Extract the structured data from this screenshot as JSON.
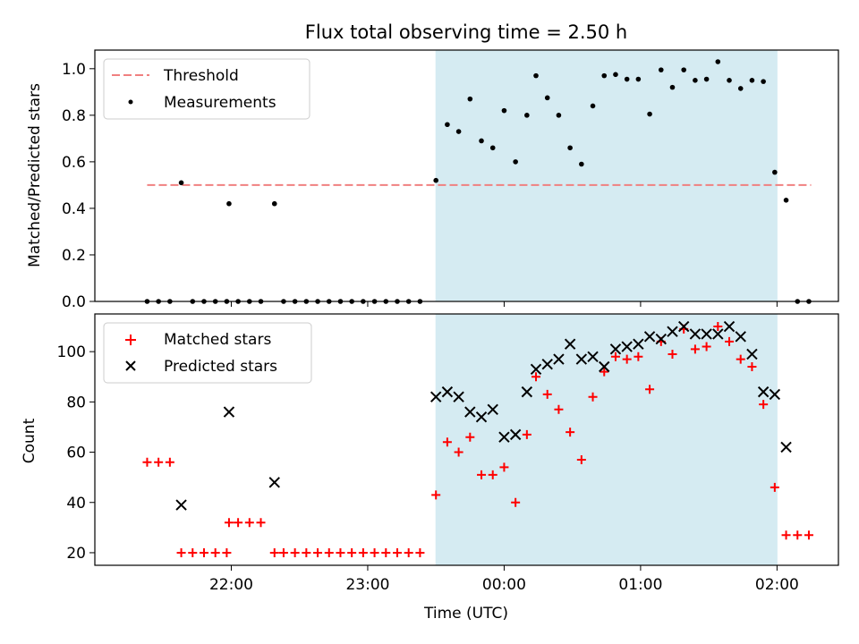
{
  "title": "Flux total observing time = 2.50 h",
  "xlabel": "Time (UTC)",
  "x_ticks": [
    "22:00",
    "23:00",
    "00:00",
    "01:00",
    "02:00"
  ],
  "colors": {
    "shade": "#add8e6",
    "threshold": "#f08080",
    "measurement": "#000000",
    "matched": "#ff0000",
    "predicted": "#000000"
  },
  "chart_data": [
    {
      "type": "scatter",
      "panel": "top",
      "ylabel": "Matched/Predicted stars",
      "ylim": [
        0,
        1.08
      ],
      "yticks": [
        "0.0",
        "0.2",
        "0.4",
        "0.6",
        "0.8",
        "1.0"
      ],
      "legend": {
        "placement": "upper-left",
        "entries": [
          "Threshold",
          "Measurements"
        ]
      },
      "shaded_interval": [
        "23:30",
        "02:00"
      ],
      "threshold": {
        "name": "Threshold",
        "value": 0.5,
        "x_range": [
          "21:23",
          "02:15"
        ]
      },
      "series": [
        {
          "name": "Measurements",
          "marker": "dot",
          "points": [
            [
              "21:23",
              0
            ],
            [
              "21:28",
              0
            ],
            [
              "21:33",
              0
            ],
            [
              "21:38",
              0.51
            ],
            [
              "21:43",
              0
            ],
            [
              "21:48",
              0
            ],
            [
              "21:53",
              0
            ],
            [
              "21:58",
              0
            ],
            [
              "21:59",
              0.42
            ],
            [
              "22:03",
              0
            ],
            [
              "22:08",
              0
            ],
            [
              "22:13",
              0
            ],
            [
              "22:19",
              0.42
            ],
            [
              "22:23",
              0
            ],
            [
              "22:28",
              0
            ],
            [
              "22:33",
              0
            ],
            [
              "22:38",
              0
            ],
            [
              "22:43",
              0
            ],
            [
              "22:48",
              0
            ],
            [
              "22:53",
              0
            ],
            [
              "22:58",
              0
            ],
            [
              "23:03",
              0
            ],
            [
              "23:08",
              0
            ],
            [
              "23:13",
              0
            ],
            [
              "23:18",
              0
            ],
            [
              "23:23",
              0
            ],
            [
              "23:30",
              0.52
            ],
            [
              "23:35",
              0.76
            ],
            [
              "23:40",
              0.73
            ],
            [
              "23:45",
              0.87
            ],
            [
              "23:50",
              0.69
            ],
            [
              "23:55",
              0.66
            ],
            [
              "00:00",
              0.82
            ],
            [
              "00:05",
              0.6
            ],
            [
              "00:10",
              0.8
            ],
            [
              "00:14",
              0.97
            ],
            [
              "00:19",
              0.875
            ],
            [
              "00:24",
              0.8
            ],
            [
              "00:29",
              0.66
            ],
            [
              "00:34",
              0.59
            ],
            [
              "00:39",
              0.84
            ],
            [
              "00:44",
              0.97
            ],
            [
              "00:49",
              0.975
            ],
            [
              "00:54",
              0.955
            ],
            [
              "00:59",
              0.955
            ],
            [
              "01:04",
              0.805
            ],
            [
              "01:09",
              0.995
            ],
            [
              "01:14",
              0.92
            ],
            [
              "01:19",
              0.995
            ],
            [
              "01:24",
              0.95
            ],
            [
              "01:29",
              0.955
            ],
            [
              "01:34",
              1.03
            ],
            [
              "01:39",
              0.95
            ],
            [
              "01:44",
              0.915
            ],
            [
              "01:49",
              0.95
            ],
            [
              "01:54",
              0.945
            ],
            [
              "01:59",
              0.555
            ],
            [
              "02:04",
              0.435
            ],
            [
              "02:09",
              0
            ],
            [
              "02:14",
              0
            ]
          ]
        }
      ]
    },
    {
      "type": "scatter",
      "panel": "bottom",
      "ylabel": "Count",
      "ylim": [
        15,
        115
      ],
      "yticks": [
        "20",
        "40",
        "60",
        "80",
        "100"
      ],
      "legend": {
        "placement": "upper-left",
        "entries": [
          "Matched stars",
          "Predicted stars"
        ]
      },
      "shaded_interval": [
        "23:30",
        "02:00"
      ],
      "series": [
        {
          "name": "Matched stars",
          "marker": "plus",
          "points": [
            [
              "21:23",
              56
            ],
            [
              "21:28",
              56
            ],
            [
              "21:33",
              56
            ],
            [
              "21:38",
              20
            ],
            [
              "21:43",
              20
            ],
            [
              "21:48",
              20
            ],
            [
              "21:53",
              20
            ],
            [
              "21:58",
              20
            ],
            [
              "21:59",
              32
            ],
            [
              "22:03",
              32
            ],
            [
              "22:08",
              32
            ],
            [
              "22:13",
              32
            ],
            [
              "22:19",
              20
            ],
            [
              "22:23",
              20
            ],
            [
              "22:28",
              20
            ],
            [
              "22:33",
              20
            ],
            [
              "22:38",
              20
            ],
            [
              "22:43",
              20
            ],
            [
              "22:48",
              20
            ],
            [
              "22:53",
              20
            ],
            [
              "22:58",
              20
            ],
            [
              "23:03",
              20
            ],
            [
              "23:08",
              20
            ],
            [
              "23:13",
              20
            ],
            [
              "23:18",
              20
            ],
            [
              "23:23",
              20
            ],
            [
              "23:30",
              43
            ],
            [
              "23:35",
              64
            ],
            [
              "23:40",
              60
            ],
            [
              "23:45",
              66
            ],
            [
              "23:50",
              51
            ],
            [
              "23:55",
              51
            ],
            [
              "00:00",
              54
            ],
            [
              "00:05",
              40
            ],
            [
              "00:10",
              67
            ],
            [
              "00:14",
              90
            ],
            [
              "00:19",
              83
            ],
            [
              "00:24",
              77
            ],
            [
              "00:29",
              68
            ],
            [
              "00:34",
              57
            ],
            [
              "00:39",
              82
            ],
            [
              "00:44",
              92
            ],
            [
              "00:49",
              98
            ],
            [
              "00:54",
              97
            ],
            [
              "00:59",
              98
            ],
            [
              "01:04",
              85
            ],
            [
              "01:09",
              104
            ],
            [
              "01:14",
              99
            ],
            [
              "01:19",
              109
            ],
            [
              "01:24",
              101
            ],
            [
              "01:29",
              102
            ],
            [
              "01:34",
              110
            ],
            [
              "01:39",
              104
            ],
            [
              "01:44",
              97
            ],
            [
              "01:49",
              94
            ],
            [
              "01:54",
              79
            ],
            [
              "01:59",
              46
            ],
            [
              "02:04",
              27
            ],
            [
              "02:09",
              27
            ],
            [
              "02:14",
              27
            ]
          ]
        },
        {
          "name": "Predicted stars",
          "marker": "x",
          "points": [
            [
              "21:38",
              39
            ],
            [
              "21:59",
              76
            ],
            [
              "22:19",
              48
            ],
            [
              "23:30",
              82
            ],
            [
              "23:35",
              84
            ],
            [
              "23:40",
              82
            ],
            [
              "23:45",
              76
            ],
            [
              "23:50",
              74
            ],
            [
              "23:55",
              77
            ],
            [
              "00:00",
              66
            ],
            [
              "00:05",
              67
            ],
            [
              "00:10",
              84
            ],
            [
              "00:14",
              93
            ],
            [
              "00:19",
              95
            ],
            [
              "00:24",
              97
            ],
            [
              "00:29",
              103
            ],
            [
              "00:34",
              97
            ],
            [
              "00:39",
              98
            ],
            [
              "00:44",
              94
            ],
            [
              "00:49",
              101
            ],
            [
              "00:54",
              102
            ],
            [
              "00:59",
              103
            ],
            [
              "01:04",
              106
            ],
            [
              "01:09",
              105
            ],
            [
              "01:14",
              108
            ],
            [
              "01:19",
              110
            ],
            [
              "01:24",
              107
            ],
            [
              "01:29",
              107
            ],
            [
              "01:34",
              107
            ],
            [
              "01:39",
              110
            ],
            [
              "01:44",
              106
            ],
            [
              "01:49",
              99
            ],
            [
              "01:54",
              84
            ],
            [
              "01:59",
              83
            ],
            [
              "02:04",
              62
            ]
          ]
        }
      ]
    }
  ]
}
